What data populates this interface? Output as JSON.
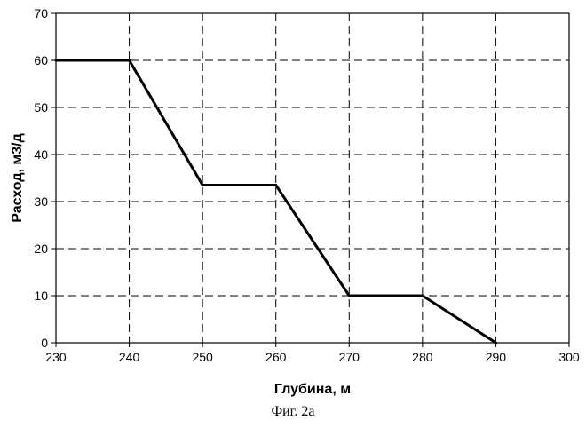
{
  "chart_data": {
    "type": "line",
    "title": "",
    "xlabel": "Глубина, м",
    "ylabel": "Расход, м3/д",
    "xlim": [
      230,
      300
    ],
    "ylim": [
      0,
      70
    ],
    "xticks": [
      "230",
      "240",
      "250",
      "260",
      "270",
      "280",
      "290",
      "300"
    ],
    "yticks": [
      "0",
      "10",
      "20",
      "30",
      "40",
      "50",
      "60",
      "70"
    ],
    "grid": true,
    "legend": "none",
    "series": [
      {
        "x": [
          230,
          240,
          250,
          260,
          270,
          280,
          290
        ],
        "y": [
          60,
          60,
          33.5,
          33.5,
          10,
          10,
          0
        ],
        "color": "#000000"
      }
    ]
  },
  "caption": "Фиг. 2а"
}
